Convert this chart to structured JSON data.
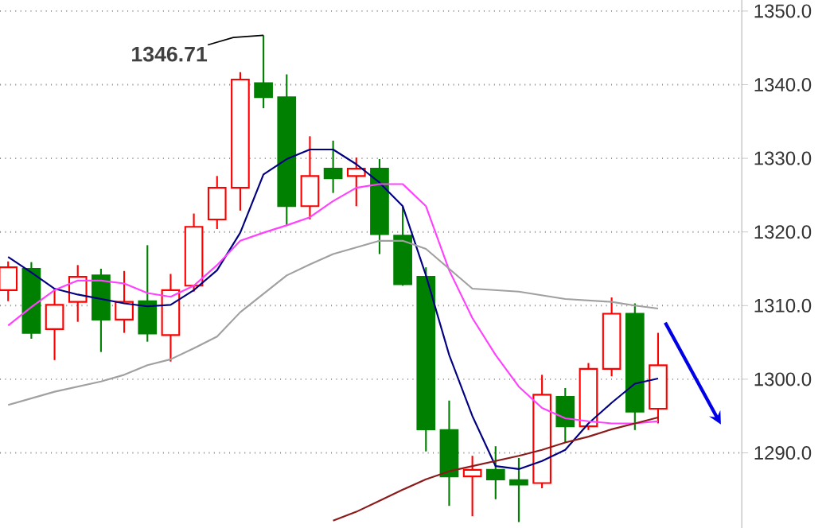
{
  "chart_data": {
    "type": "candlestick",
    "categories": [
      null,
      null,
      null,
      null,
      null,
      null,
      null,
      null,
      null,
      null,
      null,
      null,
      null,
      null,
      null,
      null,
      null,
      null,
      null,
      null,
      null,
      null,
      null,
      null,
      null,
      null,
      null,
      null,
      null
    ],
    "ohlc": [
      [
        1312.1,
        1316.0,
        1310.6,
        1315.2
      ],
      [
        1315.0,
        1315.9,
        1305.5,
        1306.3
      ],
      [
        1306.8,
        1312.3,
        1302.6,
        1310.1
      ],
      [
        1310.5,
        1315.5,
        1307.8,
        1313.9
      ],
      [
        1314.1,
        1315.0,
        1303.7,
        1308.1
      ],
      [
        1308.1,
        1314.7,
        1306.3,
        1310.5
      ],
      [
        1310.6,
        1318.2,
        1305.1,
        1306.2
      ],
      [
        1306.0,
        1314.3,
        1302.4,
        1312.1
      ],
      [
        1312.7,
        1322.5,
        1311.9,
        1320.7
      ],
      [
        1321.7,
        1327.6,
        1320.4,
        1326.0
      ],
      [
        1326.0,
        1341.7,
        1322.9,
        1340.7
      ],
      [
        1340.2,
        1346.71,
        1336.8,
        1338.3
      ],
      [
        1338.3,
        1341.4,
        1320.9,
        1323.5
      ],
      [
        1323.5,
        1333.0,
        1321.7,
        1327.6
      ],
      [
        1328.6,
        1332.4,
        1325.3,
        1327.3
      ],
      [
        1327.6,
        1330.1,
        1323.5,
        1328.6
      ],
      [
        1328.6,
        1329.9,
        1317.0,
        1319.7
      ],
      [
        1319.5,
        1323.5,
        1312.7,
        1312.9
      ],
      [
        1313.9,
        1315.2,
        1290.2,
        1293.2
      ],
      [
        1293.1,
        1297.1,
        1282.8,
        1286.8
      ],
      [
        1286.8,
        1289.6,
        1281.4,
        1287.7
      ],
      [
        1287.7,
        1290.9,
        1283.7,
        1286.4
      ],
      [
        1286.3,
        1289.3,
        1280.6,
        1285.7
      ],
      [
        1285.9,
        1300.6,
        1285.2,
        1297.9
      ],
      [
        1297.6,
        1298.8,
        1291.4,
        1293.6
      ],
      [
        1293.6,
        1302.2,
        1293.1,
        1301.4
      ],
      [
        1301.4,
        1311.1,
        1300.4,
        1308.9
      ],
      [
        1308.9,
        1310.3,
        1293.1,
        1295.6
      ],
      [
        1296.0,
        1306.3,
        1294.0,
        1301.9
      ]
    ],
    "colors": [
      "#ff0000",
      "#008000",
      "#ff0000",
      "#ff0000",
      "#008000",
      "#ff0000",
      "#008000",
      "#ff0000",
      "#ff0000",
      "#ff0000",
      "#ff0000",
      "#008000",
      "#008000",
      "#ff0000",
      "#008000",
      "#ff0000",
      "#008000",
      "#008000",
      "#008000",
      "#008000",
      "#ff0000",
      "#008000",
      "#008000",
      "#ff0000",
      "#008000",
      "#ff0000",
      "#ff0000",
      "#008000",
      "#ff0000"
    ],
    "series": [
      {
        "type": "line",
        "color": "#000080",
        "values": [
          1316.6,
          1314.5,
          1312.3,
          1311.5,
          1310.9,
          1310.3,
          1309.9,
          1310.1,
          1312.1,
          1314.8,
          1319.9,
          1327.8,
          1329.9,
          1331.2,
          1331.2,
          1329.2,
          1326.7,
          1323.5,
          1314.1,
          1303.3,
          1295.0,
          1288.2,
          1287.8,
          1288.9,
          1290.4,
          1294.0,
          1296.8,
          1299.4,
          1300.1
        ]
      },
      {
        "type": "line",
        "color": "#ff40ff",
        "values": [
          1307.3,
          1309.8,
          1312.1,
          1313.4,
          1313.4,
          1313.0,
          1311.7,
          1311.2,
          1312.7,
          1315.5,
          1318.8,
          1319.9,
          1320.9,
          1322.0,
          1324.2,
          1326.0,
          1326.5,
          1326.5,
          1323.5,
          1314.8,
          1308.3,
          1303.3,
          1299.0,
          1296.1,
          1294.7,
          1294.3,
          1294.0,
          1294.0,
          1294.3
        ]
      },
      {
        "type": "line",
        "color": "#a0a0a0",
        "values": [
          1296.5,
          1297.4,
          1298.3,
          1299.0,
          1299.7,
          1300.6,
          1301.9,
          1302.7,
          1304.2,
          1305.8,
          1309.1,
          1311.6,
          1314.1,
          1315.6,
          1317.0,
          1317.9,
          1318.8,
          1318.8,
          1317.7,
          1315.0,
          1312.3,
          1312.1,
          1311.9,
          1311.4,
          1310.9,
          1310.7,
          1310.5,
          1310.0,
          1309.6
        ]
      },
      {
        "type": "line",
        "color": "#8b1a1a",
        "values": [
          null,
          null,
          null,
          null,
          null,
          null,
          null,
          null,
          null,
          null,
          null,
          null,
          null,
          null,
          1280.8,
          1282.0,
          1283.5,
          1285.0,
          1286.4,
          1287.5,
          1288.2,
          1288.9,
          1289.6,
          1290.4,
          1291.4,
          1292.2,
          1293.2,
          1294.0,
          1294.8
        ]
      }
    ],
    "ylim": [
      1279.8,
      1351.5
    ],
    "yticks": [
      {
        "value": 1290,
        "label": "1290.0"
      },
      {
        "value": 1300,
        "label": "1300.0"
      },
      {
        "value": 1310,
        "label": "1310.0"
      },
      {
        "value": 1320,
        "label": "1320.0"
      },
      {
        "value": 1330,
        "label": "1330.0"
      },
      {
        "value": 1340,
        "label": "1340.0"
      },
      {
        "value": 1350,
        "label": "1350.0"
      }
    ],
    "grid": "y",
    "annotations": [
      "1346.71"
    ]
  }
}
